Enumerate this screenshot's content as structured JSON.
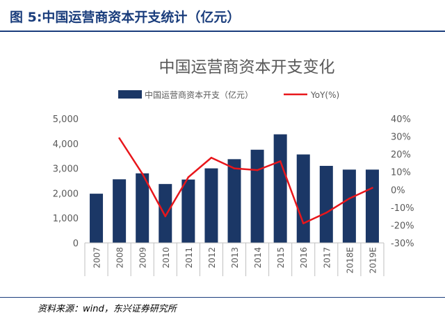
{
  "header": {
    "figure_label": "图 5:中国运营商资本开支统计（亿元）"
  },
  "footer": {
    "source": "资料来源：wind，东兴证券研究所"
  },
  "chart_data": {
    "type": "bar",
    "title": "中国运营商资本开支变化",
    "categories": [
      "2007",
      "2008",
      "2009",
      "2010",
      "2011",
      "2012",
      "2013",
      "2014",
      "2015",
      "2016",
      "2017",
      "2018E",
      "2019E"
    ],
    "series": [
      {
        "name": "中国运营商资本开支（亿元）",
        "type": "bar",
        "axis": "left",
        "values": [
          1980,
          2560,
          2800,
          2370,
          2550,
          3000,
          3370,
          3750,
          4370,
          3560,
          3100,
          2950,
          2950
        ]
      },
      {
        "name": "YoY(%)",
        "type": "line",
        "axis": "right",
        "values": [
          null,
          29,
          9,
          -15,
          7,
          18,
          12,
          11,
          16,
          -19,
          -13,
          -5,
          1
        ]
      }
    ],
    "y_left": {
      "range": [
        0,
        5000
      ],
      "ticks": [
        "0",
        "1,000",
        "2,000",
        "3,000",
        "4,000",
        "5,000"
      ]
    },
    "y_right": {
      "range": [
        -30,
        40
      ],
      "ticks": [
        "-30%",
        "-20%",
        "-10%",
        "0%",
        "10%",
        "20%",
        "30%",
        "40%"
      ]
    },
    "colors": {
      "bar": "#1b3766",
      "line": "#e8161b",
      "title": "#595959",
      "ticks": "#595959"
    },
    "grid": false,
    "legend": "top"
  }
}
